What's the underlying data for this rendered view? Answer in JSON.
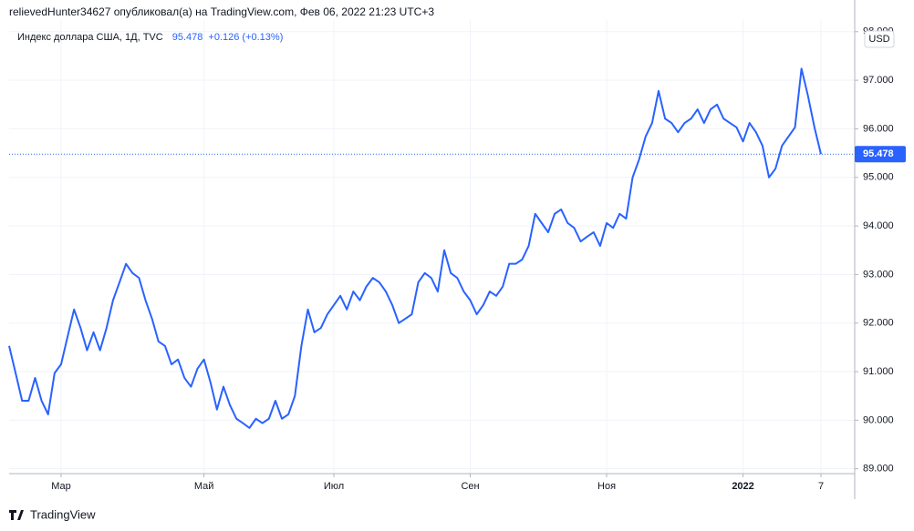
{
  "header": "relievedHunter34627 опубликовал(а) на TradingView.com, Фев 06, 2022 21:23 UTC+3",
  "footer": "TradingView",
  "chart_data": {
    "type": "line",
    "title": "Индекс доллара США, 1Д, TVC",
    "change": "+0.126 (+0.13%)",
    "currency": "USD",
    "color": "#2962ff",
    "grid": true,
    "ylim": [
      88.9,
      98.24
    ],
    "yticks": [
      {
        "value": 89,
        "label": "89.000"
      },
      {
        "value": 90,
        "label": "90.000"
      },
      {
        "value": 91,
        "label": "91.000"
      },
      {
        "value": 92,
        "label": "92.000"
      },
      {
        "value": 93,
        "label": "93.000"
      },
      {
        "value": 94,
        "label": "94.000"
      },
      {
        "value": 95,
        "label": "95.000"
      },
      {
        "value": 96,
        "label": "96.000"
      },
      {
        "value": 97,
        "label": "97.000"
      },
      {
        "value": 98,
        "label": "98.000"
      }
    ],
    "categories": [
      null,
      null,
      null,
      null,
      null,
      null,
      null,
      null,
      "Мар",
      null,
      null,
      null,
      null,
      null,
      null,
      null,
      null,
      null,
      null,
      null,
      null,
      null,
      null,
      null,
      null,
      null,
      null,
      null,
      null,
      null,
      "Май",
      null,
      null,
      null,
      null,
      null,
      null,
      null,
      null,
      null,
      null,
      null,
      null,
      null,
      null,
      null,
      null,
      null,
      null,
      null,
      "Июл",
      null,
      null,
      null,
      null,
      null,
      null,
      null,
      null,
      null,
      null,
      null,
      null,
      null,
      null,
      null,
      null,
      null,
      null,
      null,
      null,
      "Сен",
      null,
      null,
      null,
      null,
      null,
      null,
      null,
      null,
      null,
      null,
      null,
      null,
      null,
      null,
      null,
      null,
      null,
      null,
      null,
      null,
      "Ноя",
      null,
      null,
      null,
      null,
      null,
      null,
      null,
      null,
      null,
      null,
      null,
      null,
      null,
      null,
      null,
      null,
      null,
      null,
      null,
      null,
      "2022",
      null,
      null,
      null,
      null,
      null,
      null,
      null,
      null,
      null,
      null,
      null,
      "7"
    ],
    "values": [
      91.53,
      90.97,
      90.4,
      90.4,
      90.87,
      90.4,
      90.12,
      90.97,
      91.15,
      91.72,
      92.28,
      91.9,
      91.44,
      91.81,
      91.44,
      91.9,
      92.47,
      92.84,
      93.22,
      93.03,
      92.93,
      92.47,
      92.09,
      91.62,
      91.53,
      91.15,
      91.25,
      90.87,
      90.69,
      91.06,
      91.25,
      90.78,
      90.22,
      90.69,
      90.31,
      90.03,
      89.94,
      89.84,
      90.03,
      89.94,
      90.03,
      90.4,
      90.03,
      90.12,
      90.5,
      91.53,
      92.28,
      91.81,
      91.9,
      92.18,
      92.37,
      92.56,
      92.28,
      92.65,
      92.47,
      92.75,
      92.93,
      92.84,
      92.65,
      92.37,
      92.0,
      92.09,
      92.18,
      92.84,
      93.03,
      92.93,
      92.65,
      93.5,
      93.03,
      92.93,
      92.65,
      92.47,
      92.18,
      92.37,
      92.65,
      92.56,
      92.75,
      93.22,
      93.22,
      93.31,
      93.59,
      94.25,
      94.06,
      93.87,
      94.25,
      94.34,
      94.06,
      93.96,
      93.68,
      93.78,
      93.87,
      93.59,
      94.06,
      93.96,
      94.25,
      94.15,
      95.0,
      95.37,
      95.84,
      96.12,
      96.78,
      96.21,
      96.12,
      95.93,
      96.12,
      96.21,
      96.4,
      96.12,
      96.4,
      96.5,
      96.21,
      96.12,
      96.03,
      95.74,
      96.12,
      95.93,
      95.65,
      95.0,
      95.18,
      95.65,
      95.84,
      96.03,
      97.24,
      96.68,
      96.03,
      95.478
    ]
  }
}
